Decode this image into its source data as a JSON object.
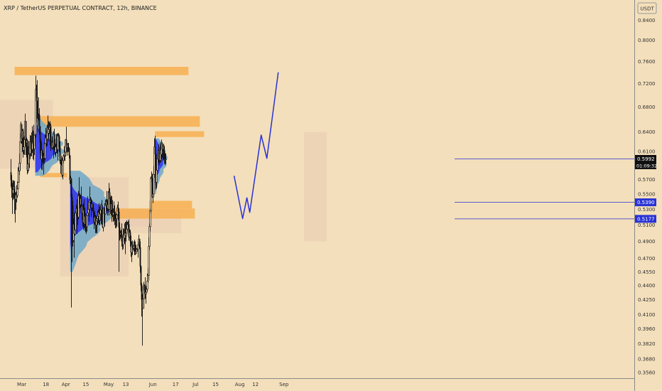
{
  "header": {
    "title": "XRP / TetherUS PERPETUAL CONTRACT, 12h, BINANCE",
    "currency": "USDT"
  },
  "price_tags": {
    "current_price": "0.5992",
    "countdown": "01:09:32",
    "level_upper": "0.5390",
    "level_lower": "0.5177"
  },
  "colors": {
    "background": "#f3dfbb",
    "candle": "#111111",
    "zone": "#f7ad4b",
    "volume_profile_blue": "#3333ee",
    "volume_profile_light": "#6fa8c8",
    "projection": "#2832d6",
    "tag_bg": "#2832d6",
    "current_tag_bg": "#111111"
  },
  "chart_data": {
    "type": "candlestick",
    "title": "XRP / TetherUS PERPETUAL CONTRACT, 12h, BINANCE",
    "y_scale": "log",
    "ylim": [
      0.353,
      0.92
    ],
    "y_ticks": [
      "0.8400",
      "0.8000",
      "0.7600",
      "0.7200",
      "0.6800",
      "0.6400",
      "0.6100",
      "0.5700",
      "0.5500",
      "0.5300",
      "0.5100",
      "0.4900",
      "0.4700",
      "0.4550",
      "0.4400",
      "0.4250",
      "0.4100",
      "0.3960",
      "0.3820",
      "0.3680",
      "0.3560"
    ],
    "x_ticks": [
      "Mar",
      "18",
      "Apr",
      "15",
      "May",
      "13",
      "Jun",
      "17",
      "Jul",
      "15",
      "Aug",
      "12",
      "Sep"
    ],
    "candles": [
      [
        0.58,
        0.569,
        0.599,
        0.56
      ],
      [
        0.569,
        0.558,
        0.576,
        0.545
      ],
      [
        0.558,
        0.551,
        0.565,
        0.524
      ],
      [
        0.551,
        0.556,
        0.569,
        0.542
      ],
      [
        0.556,
        0.56,
        0.568,
        0.544
      ],
      [
        0.56,
        0.547,
        0.568,
        0.524
      ],
      [
        0.547,
        0.543,
        0.552,
        0.513
      ],
      [
        0.543,
        0.549,
        0.553,
        0.529
      ],
      [
        0.549,
        0.548,
        0.562,
        0.539
      ],
      [
        0.548,
        0.557,
        0.567,
        0.545
      ],
      [
        0.557,
        0.566,
        0.587,
        0.556
      ],
      [
        0.566,
        0.582,
        0.588,
        0.575
      ],
      [
        0.582,
        0.593,
        0.607,
        0.576
      ],
      [
        0.593,
        0.625,
        0.638,
        0.582
      ],
      [
        0.625,
        0.652,
        0.656,
        0.622
      ],
      [
        0.652,
        0.63,
        0.652,
        0.622
      ],
      [
        0.63,
        0.642,
        0.644,
        0.609
      ],
      [
        0.642,
        0.612,
        0.645,
        0.601
      ],
      [
        0.612,
        0.617,
        0.632,
        0.606
      ],
      [
        0.617,
        0.628,
        0.634,
        0.605
      ],
      [
        0.628,
        0.657,
        0.669,
        0.618
      ],
      [
        0.657,
        0.623,
        0.657,
        0.605
      ],
      [
        0.623,
        0.627,
        0.631,
        0.601
      ],
      [
        0.627,
        0.583,
        0.629,
        0.577
      ],
      [
        0.583,
        0.592,
        0.618,
        0.579
      ],
      [
        0.592,
        0.606,
        0.626,
        0.582
      ],
      [
        0.606,
        0.607,
        0.608,
        0.586
      ],
      [
        0.607,
        0.625,
        0.635,
        0.599
      ],
      [
        0.625,
        0.614,
        0.634,
        0.603
      ],
      [
        0.614,
        0.613,
        0.639,
        0.603
      ],
      [
        0.613,
        0.624,
        0.649,
        0.608
      ],
      [
        0.624,
        0.621,
        0.642,
        0.599
      ],
      [
        0.621,
        0.614,
        0.651,
        0.597
      ],
      [
        0.614,
        0.635,
        0.635,
        0.605
      ],
      [
        0.635,
        0.636,
        0.639,
        0.618
      ],
      [
        0.636,
        0.71,
        0.734,
        0.631
      ],
      [
        0.71,
        0.69,
        0.718,
        0.655
      ],
      [
        0.69,
        0.696,
        0.726,
        0.661
      ],
      [
        0.696,
        0.669,
        0.696,
        0.64
      ],
      [
        0.669,
        0.667,
        0.669,
        0.658
      ],
      [
        0.667,
        0.649,
        0.678,
        0.636
      ],
      [
        0.649,
        0.624,
        0.649,
        0.608
      ],
      [
        0.624,
        0.599,
        0.629,
        0.599
      ],
      [
        0.599,
        0.612,
        0.625,
        0.584
      ],
      [
        0.612,
        0.604,
        0.613,
        0.583
      ],
      [
        0.604,
        0.601,
        0.61,
        0.594
      ],
      [
        0.601,
        0.603,
        0.608,
        0.577
      ],
      [
        0.603,
        0.6,
        0.623,
        0.592
      ],
      [
        0.6,
        0.622,
        0.636,
        0.597
      ],
      [
        0.622,
        0.631,
        0.646,
        0.616
      ],
      [
        0.631,
        0.629,
        0.642,
        0.618
      ],
      [
        0.629,
        0.647,
        0.651,
        0.618
      ],
      [
        0.647,
        0.638,
        0.666,
        0.633
      ],
      [
        0.638,
        0.644,
        0.657,
        0.625
      ],
      [
        0.644,
        0.647,
        0.655,
        0.637
      ],
      [
        0.647,
        0.649,
        0.657,
        0.62
      ],
      [
        0.649,
        0.616,
        0.653,
        0.611
      ],
      [
        0.616,
        0.616,
        0.619,
        0.614
      ],
      [
        0.616,
        0.624,
        0.633,
        0.613
      ],
      [
        0.624,
        0.618,
        0.627,
        0.614
      ],
      [
        0.618,
        0.637,
        0.641,
        0.6
      ],
      [
        0.637,
        0.619,
        0.645,
        0.613
      ],
      [
        0.619,
        0.609,
        0.629,
        0.605
      ],
      [
        0.609,
        0.617,
        0.621,
        0.602
      ],
      [
        0.617,
        0.618,
        0.637,
        0.608
      ],
      [
        0.618,
        0.613,
        0.637,
        0.607
      ],
      [
        0.613,
        0.634,
        0.638,
        0.597
      ],
      [
        0.634,
        0.633,
        0.638,
        0.631
      ],
      [
        0.633,
        0.617,
        0.636,
        0.609
      ],
      [
        0.617,
        0.596,
        0.625,
        0.592
      ],
      [
        0.596,
        0.596,
        0.598,
        0.578
      ],
      [
        0.596,
        0.592,
        0.604,
        0.59
      ],
      [
        0.592,
        0.576,
        0.601,
        0.573
      ],
      [
        0.576,
        0.597,
        0.602,
        0.57
      ],
      [
        0.597,
        0.604,
        0.606,
        0.593
      ],
      [
        0.604,
        0.604,
        0.618,
        0.597
      ],
      [
        0.604,
        0.609,
        0.612,
        0.596
      ],
      [
        0.609,
        0.628,
        0.629,
        0.603
      ],
      [
        0.628,
        0.616,
        0.648,
        0.609
      ],
      [
        0.616,
        0.621,
        0.622,
        0.604
      ],
      [
        0.621,
        0.617,
        0.623,
        0.609
      ],
      [
        0.617,
        0.615,
        0.623,
        0.61
      ],
      [
        0.615,
        0.604,
        0.616,
        0.6
      ],
      [
        0.604,
        0.569,
        0.605,
        0.564
      ],
      [
        0.569,
        0.571,
        0.575,
        0.563
      ],
      [
        0.571,
        0.546,
        0.572,
        0.417
      ],
      [
        0.546,
        0.535,
        0.55,
        0.466
      ],
      [
        0.535,
        0.491,
        0.541,
        0.484
      ],
      [
        0.491,
        0.511,
        0.518,
        0.489
      ],
      [
        0.511,
        0.499,
        0.526,
        0.471
      ],
      [
        0.499,
        0.504,
        0.509,
        0.497
      ],
      [
        0.504,
        0.525,
        0.528,
        0.501
      ],
      [
        0.525,
        0.531,
        0.536,
        0.521
      ],
      [
        0.531,
        0.525,
        0.543,
        0.499
      ],
      [
        0.525,
        0.52,
        0.534,
        0.51
      ],
      [
        0.52,
        0.548,
        0.554,
        0.517
      ],
      [
        0.548,
        0.548,
        0.573,
        0.537
      ],
      [
        0.548,
        0.536,
        0.551,
        0.531
      ],
      [
        0.536,
        0.544,
        0.549,
        0.532
      ],
      [
        0.544,
        0.525,
        0.56,
        0.525
      ],
      [
        0.525,
        0.534,
        0.535,
        0.517
      ],
      [
        0.534,
        0.513,
        0.536,
        0.508
      ],
      [
        0.513,
        0.529,
        0.538,
        0.504
      ],
      [
        0.529,
        0.511,
        0.543,
        0.506
      ],
      [
        0.511,
        0.521,
        0.532,
        0.503
      ],
      [
        0.521,
        0.511,
        0.525,
        0.501
      ],
      [
        0.511,
        0.508,
        0.521,
        0.499
      ],
      [
        0.508,
        0.522,
        0.523,
        0.502
      ],
      [
        0.522,
        0.525,
        0.547,
        0.521
      ],
      [
        0.525,
        0.53,
        0.536,
        0.522
      ],
      [
        0.53,
        0.539,
        0.541,
        0.514
      ],
      [
        0.539,
        0.542,
        0.56,
        0.529
      ],
      [
        0.542,
        0.542,
        0.546,
        0.537
      ],
      [
        0.542,
        0.532,
        0.544,
        0.52
      ],
      [
        0.532,
        0.537,
        0.542,
        0.528
      ],
      [
        0.537,
        0.532,
        0.537,
        0.527
      ],
      [
        0.532,
        0.525,
        0.537,
        0.519
      ],
      [
        0.525,
        0.514,
        0.526,
        0.505
      ],
      [
        0.514,
        0.52,
        0.528,
        0.51
      ],
      [
        0.52,
        0.51,
        0.523,
        0.5
      ],
      [
        0.51,
        0.515,
        0.522,
        0.5
      ],
      [
        0.515,
        0.518,
        0.52,
        0.5
      ],
      [
        0.518,
        0.521,
        0.528,
        0.51
      ],
      [
        0.521,
        0.526,
        0.53,
        0.512
      ],
      [
        0.526,
        0.516,
        0.538,
        0.51
      ],
      [
        0.516,
        0.524,
        0.533,
        0.51
      ],
      [
        0.524,
        0.529,
        0.535,
        0.516
      ],
      [
        0.529,
        0.536,
        0.537,
        0.511
      ],
      [
        0.536,
        0.514,
        0.542,
        0.511
      ],
      [
        0.514,
        0.507,
        0.527,
        0.506
      ],
      [
        0.507,
        0.531,
        0.531,
        0.502
      ],
      [
        0.531,
        0.524,
        0.531,
        0.512
      ],
      [
        0.524,
        0.524,
        0.538,
        0.508
      ],
      [
        0.524,
        0.535,
        0.542,
        0.524
      ],
      [
        0.535,
        0.54,
        0.543,
        0.53
      ],
      [
        0.54,
        0.531,
        0.554,
        0.527
      ],
      [
        0.531,
        0.536,
        0.543,
        0.522
      ],
      [
        0.536,
        0.53,
        0.554,
        0.528
      ],
      [
        0.53,
        0.552,
        0.565,
        0.522
      ],
      [
        0.552,
        0.543,
        0.558,
        0.536
      ],
      [
        0.543,
        0.529,
        0.546,
        0.524
      ],
      [
        0.529,
        0.537,
        0.548,
        0.522
      ],
      [
        0.537,
        0.524,
        0.547,
        0.514
      ],
      [
        0.524,
        0.523,
        0.542,
        0.52
      ],
      [
        0.523,
        0.526,
        0.531,
        0.514
      ],
      [
        0.526,
        0.525,
        0.54,
        0.515
      ],
      [
        0.525,
        0.522,
        0.535,
        0.51
      ],
      [
        0.522,
        0.517,
        0.527,
        0.506
      ],
      [
        0.517,
        0.518,
        0.524,
        0.506
      ],
      [
        0.518,
        0.523,
        0.525,
        0.508
      ],
      [
        0.523,
        0.532,
        0.536,
        0.522
      ],
      [
        0.532,
        0.527,
        0.54,
        0.516
      ],
      [
        0.527,
        0.507,
        0.531,
        0.455
      ],
      [
        0.507,
        0.498,
        0.513,
        0.491
      ],
      [
        0.498,
        0.5,
        0.503,
        0.493
      ],
      [
        0.5,
        0.496,
        0.504,
        0.495
      ],
      [
        0.496,
        0.49,
        0.512,
        0.484
      ],
      [
        0.49,
        0.486,
        0.497,
        0.48
      ],
      [
        0.486,
        0.498,
        0.506,
        0.481
      ],
      [
        0.498,
        0.494,
        0.505,
        0.49
      ],
      [
        0.494,
        0.5,
        0.512,
        0.487
      ],
      [
        0.5,
        0.497,
        0.514,
        0.475
      ],
      [
        0.497,
        0.5,
        0.514,
        0.49
      ],
      [
        0.5,
        0.505,
        0.516,
        0.498
      ],
      [
        0.505,
        0.511,
        0.514,
        0.502
      ],
      [
        0.511,
        0.511,
        0.515,
        0.508
      ],
      [
        0.511,
        0.495,
        0.517,
        0.491
      ],
      [
        0.495,
        0.501,
        0.505,
        0.494
      ],
      [
        0.501,
        0.49,
        0.504,
        0.484
      ],
      [
        0.49,
        0.477,
        0.497,
        0.472
      ],
      [
        0.477,
        0.486,
        0.49,
        0.466
      ],
      [
        0.486,
        0.483,
        0.491,
        0.474
      ],
      [
        0.483,
        0.482,
        0.485,
        0.48
      ],
      [
        0.482,
        0.485,
        0.49,
        0.478
      ],
      [
        0.485,
        0.485,
        0.492,
        0.474
      ],
      [
        0.485,
        0.476,
        0.49,
        0.474
      ],
      [
        0.476,
        0.478,
        0.486,
        0.475
      ],
      [
        0.478,
        0.481,
        0.482,
        0.477
      ],
      [
        0.481,
        0.481,
        0.483,
        0.479
      ],
      [
        0.481,
        0.486,
        0.49,
        0.471
      ],
      [
        0.486,
        0.493,
        0.498,
        0.484
      ],
      [
        0.493,
        0.483,
        0.493,
        0.481
      ],
      [
        0.483,
        0.461,
        0.49,
        0.454
      ],
      [
        0.461,
        0.44,
        0.462,
        0.434
      ],
      [
        0.44,
        0.425,
        0.443,
        0.408
      ],
      [
        0.425,
        0.416,
        0.431,
        0.38
      ],
      [
        0.416,
        0.426,
        0.44,
        0.417
      ],
      [
        0.426,
        0.441,
        0.444,
        0.416
      ],
      [
        0.441,
        0.435,
        0.441,
        0.432
      ],
      [
        0.435,
        0.431,
        0.449,
        0.426
      ],
      [
        0.431,
        0.433,
        0.44,
        0.421
      ],
      [
        0.433,
        0.436,
        0.438,
        0.432
      ],
      [
        0.436,
        0.445,
        0.453,
        0.434
      ],
      [
        0.445,
        0.451,
        0.459,
        0.443
      ],
      [
        0.451,
        0.484,
        0.495,
        0.446
      ],
      [
        0.484,
        0.508,
        0.512,
        0.48
      ],
      [
        0.508,
        0.528,
        0.531,
        0.502
      ],
      [
        0.528,
        0.572,
        0.574,
        0.525
      ],
      [
        0.572,
        0.572,
        0.581,
        0.566
      ],
      [
        0.572,
        0.546,
        0.578,
        0.545
      ],
      [
        0.546,
        0.55,
        0.559,
        0.538
      ],
      [
        0.55,
        0.577,
        0.589,
        0.546
      ],
      [
        0.577,
        0.617,
        0.63,
        0.572
      ],
      [
        0.617,
        0.606,
        0.634,
        0.589
      ],
      [
        0.606,
        0.566,
        0.607,
        0.556
      ],
      [
        0.566,
        0.583,
        0.59,
        0.558
      ],
      [
        0.583,
        0.599,
        0.609,
        0.578
      ],
      [
        0.599,
        0.612,
        0.612,
        0.59
      ],
      [
        0.612,
        0.6,
        0.621,
        0.594
      ],
      [
        0.6,
        0.597,
        0.609,
        0.59
      ],
      [
        0.597,
        0.612,
        0.624,
        0.594
      ],
      [
        0.612,
        0.606,
        0.619,
        0.594
      ],
      [
        0.606,
        0.621,
        0.628,
        0.599
      ],
      [
        0.621,
        0.613,
        0.624,
        0.601
      ],
      [
        0.613,
        0.619,
        0.619,
        0.596
      ],
      [
        0.619,
        0.611,
        0.622,
        0.598
      ],
      [
        0.611,
        0.604,
        0.618,
        0.592
      ],
      [
        0.604,
        0.599,
        0.608,
        0.59
      ],
      [
        0.599,
        0.599,
        0.607,
        0.592
      ]
    ],
    "zones": [
      {
        "from_index": 6,
        "to_index": 250,
        "low": 0.735,
        "high": 0.75
      },
      {
        "from_index": 35,
        "to_index": 266,
        "low": 0.648,
        "high": 0.665
      },
      {
        "from_index": 203,
        "to_index": 272,
        "low": 0.632,
        "high": 0.641
      },
      {
        "from_index": 42,
        "to_index": 80,
        "low": 0.573,
        "high": 0.579
      },
      {
        "from_index": 195,
        "to_index": 255,
        "low": 0.531,
        "high": 0.541
      },
      {
        "from_index": 102,
        "to_index": 259,
        "low": 0.518,
        "high": 0.531
      }
    ],
    "projection": [
      {
        "x": "2024-07-28",
        "y": 0.575
      },
      {
        "x": "2024-08-03",
        "y": 0.518
      },
      {
        "x": "2024-08-06",
        "y": 0.545
      },
      {
        "x": "2024-08-08",
        "y": 0.526
      },
      {
        "x": "2024-08-16",
        "y": 0.635
      },
      {
        "x": "2024-08-20",
        "y": 0.6
      },
      {
        "x": "2024-08-28",
        "y": 0.74
      }
    ]
  }
}
